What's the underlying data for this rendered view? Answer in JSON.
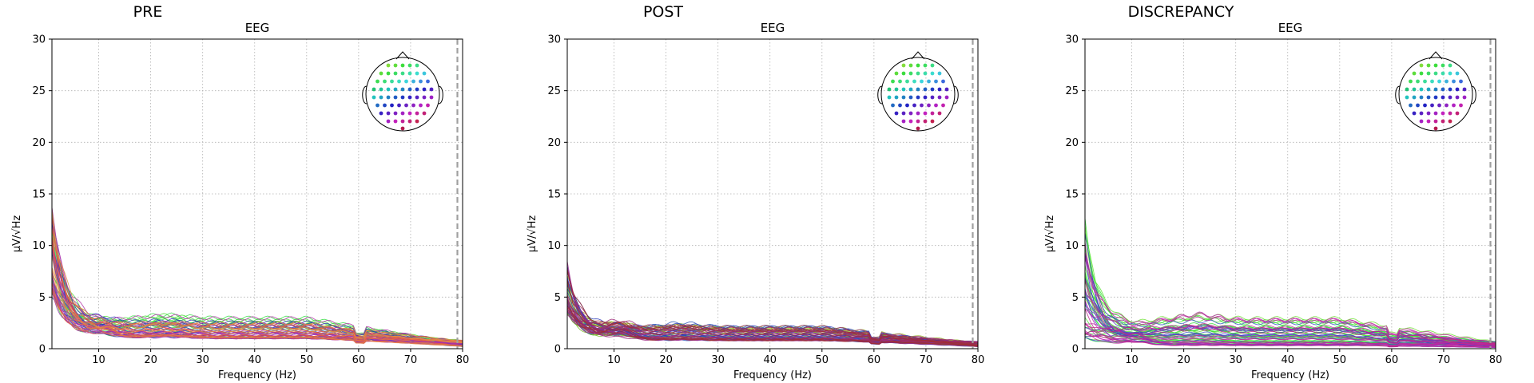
{
  "chart_data": [
    {
      "type": "line",
      "title": "PRE",
      "subtitle": "EEG",
      "xlabel": "Frequency (Hz)",
      "ylabel": "µV/√Hz",
      "xlim": [
        1,
        80
      ],
      "ylim": [
        0,
        30
      ],
      "xticks": [
        10,
        20,
        30,
        40,
        50,
        60,
        70,
        80
      ],
      "yticks": [
        0,
        5,
        10,
        15,
        20,
        25,
        30
      ],
      "grid": true,
      "cutoff_line_x": 79,
      "inset": "sensor-layout-head top-right",
      "channel_count": 59,
      "series_profile": {
        "peak_at_1hz": [
          5.0,
          13.5
        ],
        "alpha_bump_10hz": 3.0,
        "plateau_20_50hz": [
          1.0,
          3.2
        ],
        "drop_at_60hz": true,
        "end_at_80hz": [
          0.2,
          0.8
        ]
      }
    },
    {
      "type": "line",
      "title": "POST",
      "subtitle": "EEG",
      "xlabel": "Frequency (Hz)",
      "ylabel": "µV/√Hz",
      "xlim": [
        1,
        80
      ],
      "ylim": [
        0,
        30
      ],
      "xticks": [
        10,
        20,
        30,
        40,
        50,
        60,
        70,
        80
      ],
      "yticks": [
        0,
        5,
        10,
        15,
        20,
        25,
        30
      ],
      "grid": true,
      "cutoff_line_x": 79,
      "inset": "sensor-layout-head top-right",
      "channel_count": 59,
      "series_profile": {
        "peak_at_1hz": [
          3.5,
          8.5
        ],
        "alpha_bump_10hz": 3.3,
        "plateau_20_50hz": [
          0.8,
          2.2
        ],
        "drop_at_60hz": true,
        "end_at_80hz": [
          0.2,
          0.7
        ]
      }
    },
    {
      "type": "line",
      "title": "DISCREPANCY",
      "subtitle": "EEG",
      "xlabel": "Frequency (Hz)",
      "ylabel": "µV/√Hz",
      "xlim": [
        1,
        80
      ],
      "ylim": [
        0,
        30
      ],
      "xticks": [
        10,
        20,
        30,
        40,
        50,
        60,
        70,
        80
      ],
      "yticks": [
        0,
        5,
        10,
        15,
        20,
        25,
        30
      ],
      "grid": true,
      "cutoff_line_x": 79,
      "inset": "sensor-layout-head top-right",
      "channel_count": 59,
      "series_profile": {
        "peak_at_1hz": [
          1.0,
          12.5
        ],
        "alpha_bump_10hz": 1.8,
        "plateau_20_50hz": [
          0.3,
          3.0
        ],
        "drop_at_60hz": true,
        "end_at_80hz": [
          0.1,
          0.7
        ]
      }
    }
  ]
}
